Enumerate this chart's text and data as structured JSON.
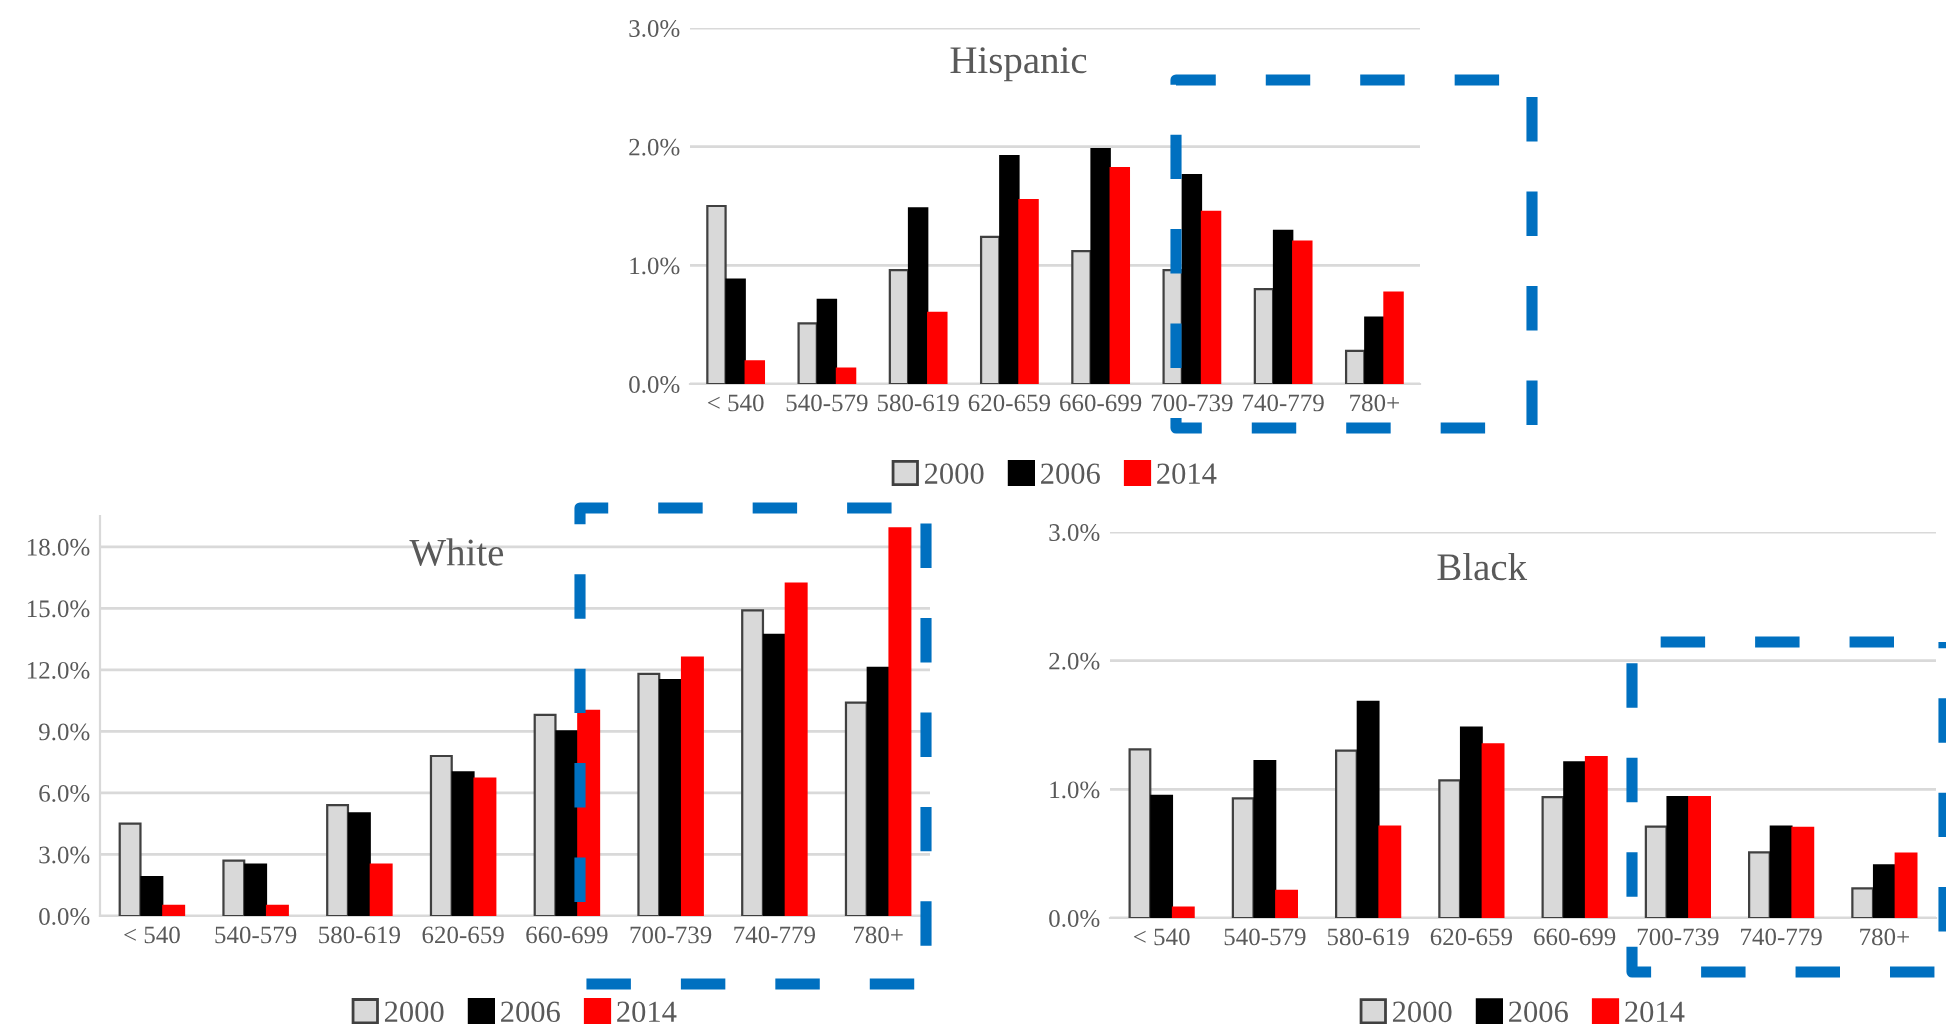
{
  "chart_data": [
    {
      "type": "bar",
      "title": "Hispanic",
      "categories": [
        "< 540",
        "540-579",
        "580-619",
        "620-659",
        "660-699",
        "700-739",
        "740-779",
        "780+"
      ],
      "series": [
        {
          "name": "2000",
          "color": "#d9d9d9",
          "values": [
            1.5,
            0.51,
            0.96,
            1.24,
            1.12,
            0.96,
            0.8,
            0.28
          ]
        },
        {
          "name": "2006",
          "color": "#000000",
          "values": [
            0.88,
            0.71,
            1.48,
            1.92,
            1.98,
            1.76,
            1.29,
            0.56
          ]
        },
        {
          "name": "2014",
          "color": "#ff0000",
          "values": [
            0.19,
            0.13,
            0.6,
            1.55,
            1.82,
            1.45,
            1.2,
            0.77
          ]
        }
      ],
      "ylim": [
        0,
        3
      ],
      "yticks": [
        {
          "value": 0,
          "label": "0.0%"
        },
        {
          "value": 1,
          "label": "1.0%"
        },
        {
          "value": 2,
          "label": "2.0%"
        },
        {
          "value": 3,
          "label": "3.0%"
        }
      ],
      "grid": "y",
      "legend": "bottom"
    },
    {
      "type": "bar",
      "title": "White",
      "categories": [
        "< 540",
        "540-579",
        "580-619",
        "620-659",
        "660-699",
        "700-739",
        "740-779",
        "780+"
      ],
      "series": [
        {
          "name": "2000",
          "color": "#d9d9d9",
          "values": [
            4.5,
            2.7,
            5.4,
            7.8,
            9.8,
            11.8,
            14.9,
            10.4
          ]
        },
        {
          "name": "2006",
          "color": "#000000",
          "values": [
            1.9,
            2.5,
            5.0,
            7.0,
            9.0,
            11.5,
            13.7,
            12.1
          ]
        },
        {
          "name": "2014",
          "color": "#ff0000",
          "values": [
            0.5,
            0.5,
            2.5,
            6.7,
            10.0,
            12.6,
            16.2,
            18.9
          ]
        }
      ],
      "ylim": [
        0,
        19.5
      ],
      "yticks": [
        {
          "value": 0,
          "label": "0.0%"
        },
        {
          "value": 3,
          "label": "3.0%"
        },
        {
          "value": 6,
          "label": "6.0%"
        },
        {
          "value": 9,
          "label": "9.0%"
        },
        {
          "value": 12,
          "label": "12.0%"
        },
        {
          "value": 15,
          "label": "15.0%"
        },
        {
          "value": 18,
          "label": "18.0%"
        }
      ],
      "grid": "y",
      "legend": "bottom"
    },
    {
      "type": "bar",
      "title": "Black",
      "categories": [
        "< 540",
        "540-579",
        "580-619",
        "620-659",
        "660-699",
        "700-739",
        "740-779",
        "780+"
      ],
      "series": [
        {
          "name": "2000",
          "color": "#d9d9d9",
          "values": [
            1.31,
            0.93,
            1.3,
            1.07,
            0.94,
            0.71,
            0.51,
            0.23
          ]
        },
        {
          "name": "2006",
          "color": "#000000",
          "values": [
            0.95,
            1.22,
            1.68,
            1.48,
            1.21,
            0.94,
            0.71,
            0.41
          ]
        },
        {
          "name": "2014",
          "color": "#ff0000",
          "values": [
            0.08,
            0.21,
            0.71,
            1.35,
            1.25,
            0.94,
            0.7,
            0.5
          ]
        }
      ],
      "ylim": [
        0,
        3
      ],
      "yticks": [
        {
          "value": 0,
          "label": "0.0%"
        },
        {
          "value": 1,
          "label": "1.0%"
        },
        {
          "value": 2,
          "label": "2.0%"
        },
        {
          "value": 3,
          "label": "3.0%"
        }
      ],
      "grid": "y",
      "legend": "bottom"
    }
  ]
}
